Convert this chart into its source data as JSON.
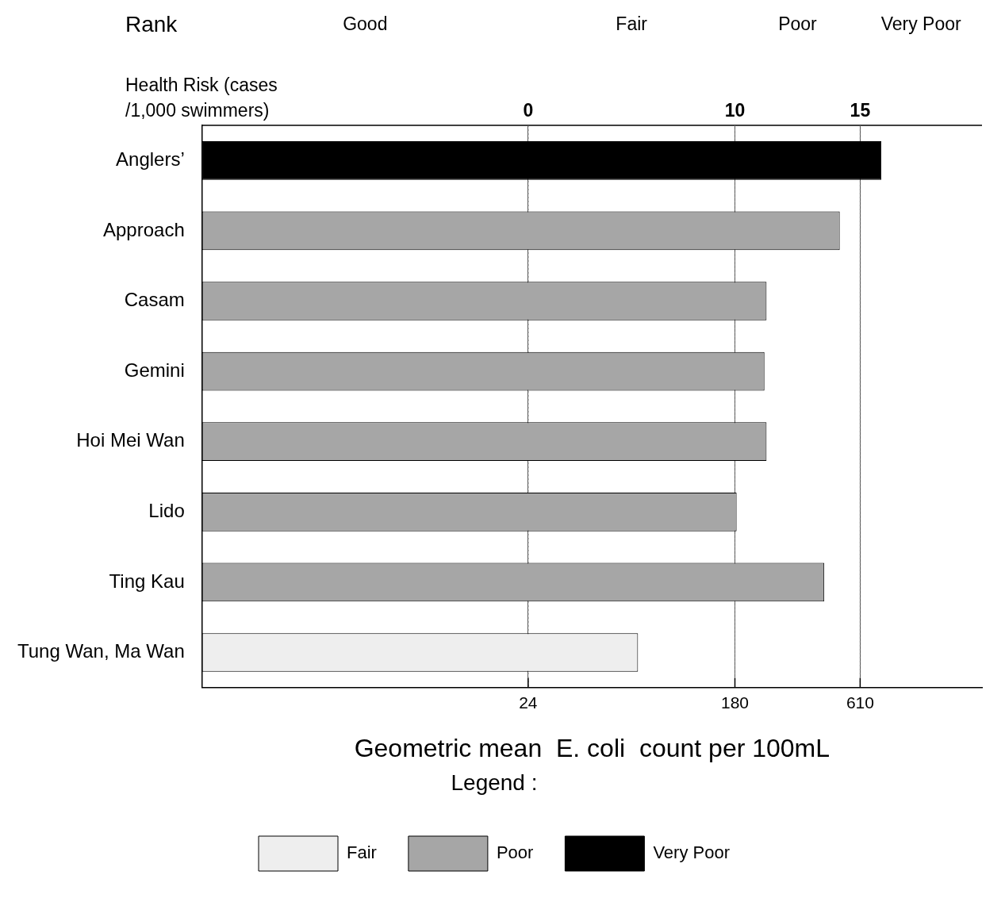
{
  "chart_data": {
    "type": "bar",
    "orientation": "horizontal",
    "stacked": true,
    "log": "x",
    "categories": [
      "Anglers’",
      "Approach",
      "Casam",
      "Gemini",
      "Hoi Mei Wan",
      "Lido",
      "Ting Kau",
      "Tung Wan, Ma Wan"
    ],
    "series": [
      {
        "name": "Fair",
        "color": "#eeeeee",
        "values": [
          null,
          null,
          null,
          null,
          null,
          null,
          null,
          70
        ]
      },
      {
        "name": "Poor",
        "color": "#a6a6a6",
        "values": [
          null,
          500,
          245,
          240,
          245,
          183,
          430,
          null
        ]
      },
      {
        "name": "Very Poor",
        "color": "#000000",
        "values": [
          750,
          null,
          null,
          null,
          null,
          null,
          null,
          null
        ]
      }
    ],
    "xlabel": "Geometric mean  E. coli  count per 100mL",
    "xlim": [
      1,
      2000
    ],
    "xticks": [
      24,
      180,
      610
    ],
    "annotations": [
      [
        "Rank",
        "Good",
        "Fair",
        "Poor",
        "Very Poor"
      ],
      [
        "Health Risk (cases /1,000 swimmers)",
        "0",
        "10",
        "15"
      ]
    ],
    "grid": "x",
    "legend": "bottom",
    "legend_title": "Legend :"
  }
}
